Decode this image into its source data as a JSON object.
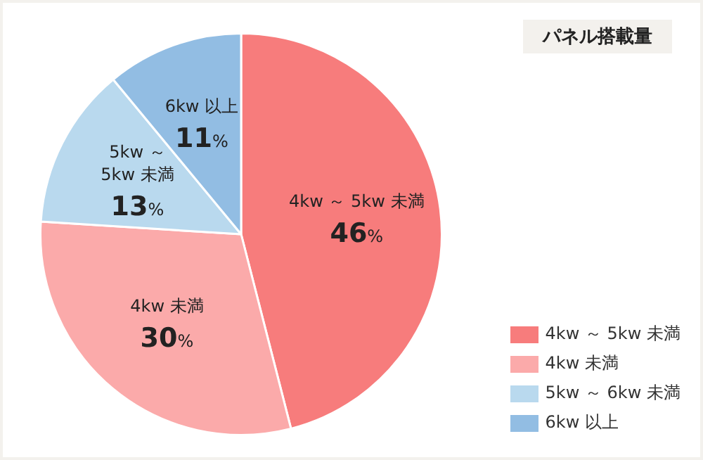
{
  "chart_data": {
    "type": "pie",
    "title": "パネル搭載量",
    "categories": [
      "4kw ～ 5kw 未満",
      "4kw 未満",
      "5kw ～ 6kw 未満",
      "6kw 以上"
    ],
    "values": [
      46,
      30,
      13,
      11
    ],
    "colors": [
      "#f77c7c",
      "#fbaaaa",
      "#b9d9ee",
      "#92bde3"
    ],
    "value_labels": [
      "46%",
      "30%",
      "13%",
      "11%"
    ],
    "annotations": [
      "4kw ～ 5kw 未満",
      "4kw 未満",
      "5kw ～ 5kw 未満",
      "6kw 以上"
    ],
    "legend": "bottom right"
  }
}
